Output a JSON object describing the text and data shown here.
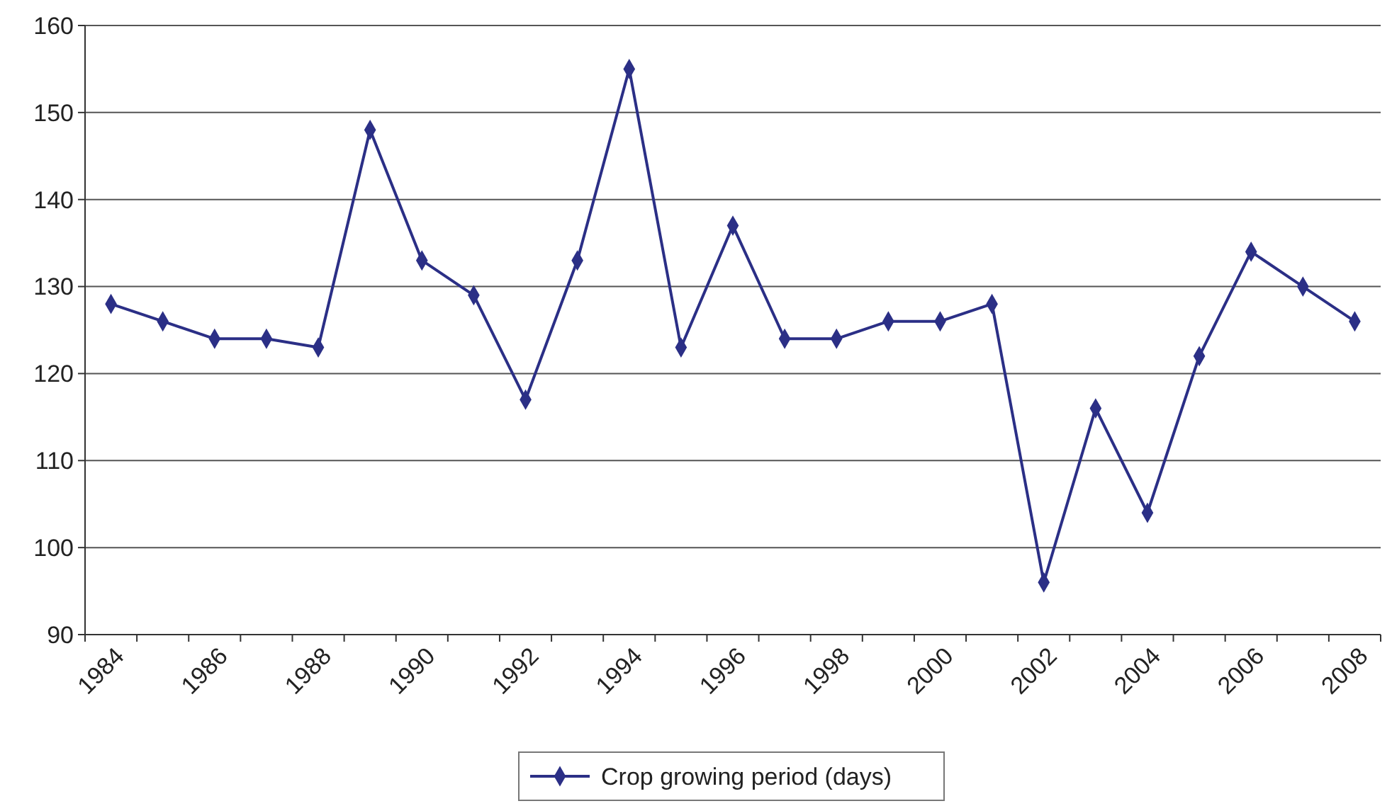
{
  "chart_data": {
    "type": "line",
    "categories": [
      "1984",
      null,
      "1986",
      null,
      "1988",
      null,
      "1990",
      null,
      "1992",
      null,
      "1994",
      null,
      "1996",
      null,
      "1998",
      null,
      "2000",
      null,
      "2002",
      null,
      "2004",
      null,
      "2006",
      null,
      "2008"
    ],
    "series": [
      {
        "name": "Crop growing period (days)",
        "color": "#2b2f86",
        "values": [
          128,
          126,
          124,
          124,
          123,
          148,
          133,
          129,
          117,
          133,
          155,
          123,
          137,
          124,
          124,
          126,
          126,
          128,
          96,
          116,
          104,
          122,
          134,
          130,
          126
        ]
      }
    ],
    "ylim": [
      90,
      160
    ],
    "yticks": [
      90,
      100,
      110,
      120,
      130,
      140,
      150,
      160
    ],
    "grid": "y",
    "legend": "bottom",
    "marker": "diamond",
    "line_style": "solid"
  }
}
